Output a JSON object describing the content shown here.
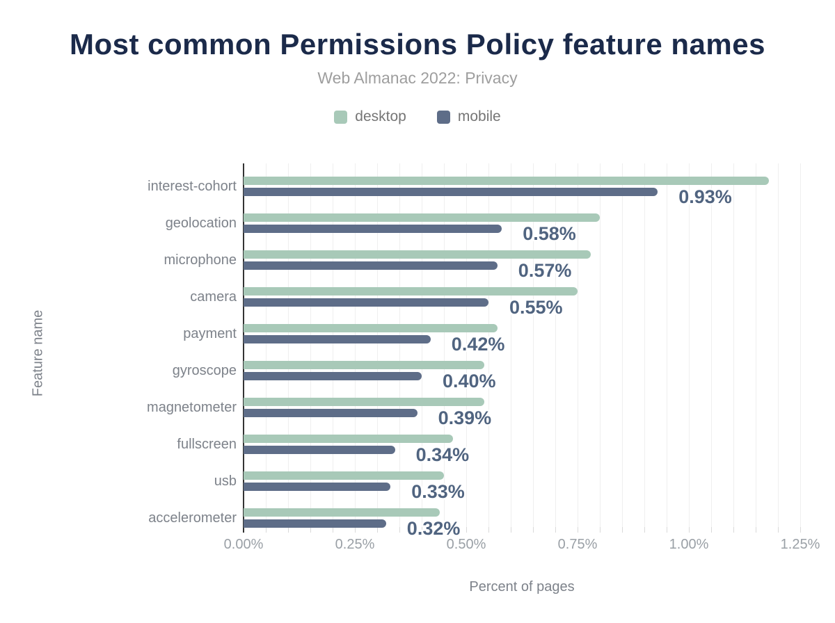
{
  "header": {
    "title": "Most common Permissions Policy feature names",
    "subtitle": "Web Almanac 2022: Privacy"
  },
  "legend": [
    {
      "label": "desktop",
      "color": "#a8c9b8"
    },
    {
      "label": "mobile",
      "color": "#5e6d88"
    }
  ],
  "colors": {
    "title": "#1b2a4a",
    "subtitle": "#9e9e9e",
    "desktop_bar": "#a8c9b8",
    "mobile_bar": "#5e6d88",
    "value_label": "#506480",
    "axis_line": "#333333",
    "gridline": "#efefef",
    "tick_label": "#9aa0a6",
    "category_label": "#7d828a"
  },
  "chart_data": {
    "type": "bar",
    "orientation": "horizontal",
    "title": "Most common Permissions Policy feature names",
    "subtitle": "Web Almanac 2022: Privacy",
    "xlabel": "Percent of pages",
    "ylabel": "Feature name",
    "xlim": [
      0,
      1.25
    ],
    "x_tick_values": [
      0,
      0.25,
      0.5,
      0.75,
      1.0,
      1.25
    ],
    "x_tick_labels": [
      "0.00%",
      "0.25%",
      "0.50%",
      "0.75%",
      "1.00%",
      "1.25%"
    ],
    "minor_grid_step": 0.05,
    "grid": "vertical",
    "legend_position": "top",
    "categories": [
      "interest-cohort",
      "geolocation",
      "microphone",
      "camera",
      "payment",
      "gyroscope",
      "magnetometer",
      "fullscreen",
      "usb",
      "accelerometer"
    ],
    "series": [
      {
        "name": "desktop",
        "values": [
          1.18,
          0.8,
          0.78,
          0.75,
          0.57,
          0.54,
          0.54,
          0.47,
          0.45,
          0.44
        ]
      },
      {
        "name": "mobile",
        "values": [
          0.93,
          0.58,
          0.57,
          0.55,
          0.42,
          0.4,
          0.39,
          0.34,
          0.33,
          0.32
        ]
      }
    ],
    "data_labels": [
      "0.93%",
      "0.58%",
      "0.57%",
      "0.55%",
      "0.42%",
      "0.40%",
      "0.39%",
      "0.34%",
      "0.33%",
      "0.32%"
    ],
    "data_labels_series": "mobile"
  }
}
